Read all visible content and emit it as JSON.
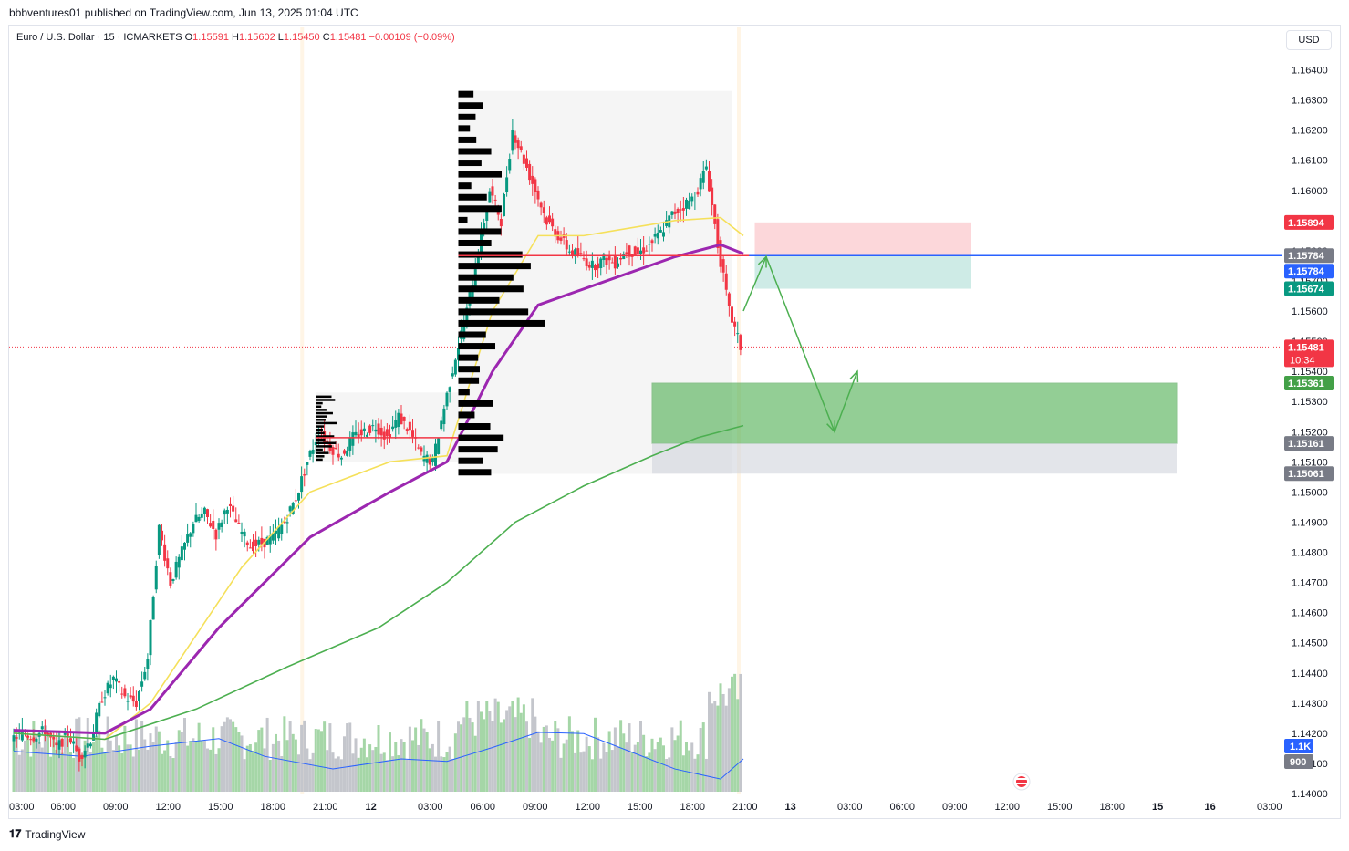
{
  "byline": "bbbventures01 published on TradingView.com, Jun 13, 2025 01:04 UTC",
  "legend": {
    "symbol": "Euro / U.S. Dollar · 15 · ICMARKETS",
    "open_label": "O",
    "open": "1.15591",
    "high_label": "H",
    "high": "1.15602",
    "low_label": "L",
    "low": "1.15450",
    "close_label": "C",
    "close": "1.15481",
    "change": "−0.00109 (−0.09%)"
  },
  "currency": "USD",
  "footer": {
    "brand": "TradingView"
  },
  "chart_data": {
    "type": "candlestick",
    "instrument": "Euro / U.S. Dollar",
    "timeframe": "15",
    "exchange": "ICMARKETS",
    "ylim": [
      1.14,
      1.1645
    ],
    "y_ticks": [
      "1.16400",
      "1.16300",
      "1.16200",
      "1.16100",
      "1.16000",
      "1.15900",
      "1.15800",
      "1.15700",
      "1.15600",
      "1.15500",
      "1.15400",
      "1.15300",
      "1.15200",
      "1.15100",
      "1.15000",
      "1.14900",
      "1.14800",
      "1.14700",
      "1.14600",
      "1.14500",
      "1.14400",
      "1.14300",
      "1.14200",
      "1.14100",
      "1.14000"
    ],
    "x_ticks": [
      "03:00",
      "06:00",
      "09:00",
      "12:00",
      "15:00",
      "18:00",
      "21:00",
      "12",
      "03:00",
      "06:00",
      "09:00",
      "12:00",
      "15:00",
      "18:00",
      "21:00",
      "13",
      "03:00",
      "06:00",
      "09:00",
      "12:00",
      "15:00",
      "18:00",
      "15",
      "16",
      "03:00"
    ],
    "price_path": [
      {
        "t": 0,
        "p": 1.1418
      },
      {
        "t": 1,
        "p": 1.142
      },
      {
        "t": 2,
        "p": 1.1419
      },
      {
        "t": 3,
        "p": 1.1421
      },
      {
        "t": 4,
        "p": 1.1415
      },
      {
        "t": 5,
        "p": 1.142
      },
      {
        "t": 6,
        "p": 1.1412
      },
      {
        "t": 7,
        "p": 1.1418
      },
      {
        "t": 8,
        "p": 1.1432
      },
      {
        "t": 9,
        "p": 1.1438
      },
      {
        "t": 10,
        "p": 1.1432
      },
      {
        "t": 11,
        "p": 1.143
      },
      {
        "t": 12,
        "p": 1.1445
      },
      {
        "t": 13,
        "p": 1.1488
      },
      {
        "t": 14,
        "p": 1.147
      },
      {
        "t": 15,
        "p": 1.148
      },
      {
        "t": 16,
        "p": 1.149
      },
      {
        "t": 17,
        "p": 1.1493
      },
      {
        "t": 18,
        "p": 1.1486
      },
      {
        "t": 19,
        "p": 1.1496
      },
      {
        "t": 20,
        "p": 1.1488
      },
      {
        "t": 21,
        "p": 1.1482
      },
      {
        "t": 22,
        "p": 1.1483
      },
      {
        "t": 23,
        "p": 1.1485
      },
      {
        "t": 24,
        "p": 1.149
      },
      {
        "t": 25,
        "p": 1.1498
      },
      {
        "t": 26,
        "p": 1.151
      },
      {
        "t": 27,
        "p": 1.152
      },
      {
        "t": 28,
        "p": 1.1515
      },
      {
        "t": 29,
        "p": 1.1512
      },
      {
        "t": 30,
        "p": 1.1518
      },
      {
        "t": 31,
        "p": 1.152
      },
      {
        "t": 32,
        "p": 1.1522
      },
      {
        "t": 33,
        "p": 1.1518
      },
      {
        "t": 34,
        "p": 1.1525
      },
      {
        "t": 35,
        "p": 1.152
      },
      {
        "t": 36,
        "p": 1.1512
      },
      {
        "t": 37,
        "p": 1.151
      },
      {
        "t": 38,
        "p": 1.1528
      },
      {
        "t": 39,
        "p": 1.1545
      },
      {
        "t": 40,
        "p": 1.156
      },
      {
        "t": 41,
        "p": 1.158
      },
      {
        "t": 42,
        "p": 1.16
      },
      {
        "t": 43,
        "p": 1.159
      },
      {
        "t": 44,
        "p": 1.162
      },
      {
        "t": 45,
        "p": 1.161
      },
      {
        "t": 46,
        "p": 1.16
      },
      {
        "t": 47,
        "p": 1.159
      },
      {
        "t": 48,
        "p": 1.1585
      },
      {
        "t": 49,
        "p": 1.158
      },
      {
        "t": 50,
        "p": 1.1578
      },
      {
        "t": 51,
        "p": 1.1575
      },
      {
        "t": 52,
        "p": 1.1577
      },
      {
        "t": 53,
        "p": 1.1576
      },
      {
        "t": 54,
        "p": 1.158
      },
      {
        "t": 55,
        "p": 1.1579
      },
      {
        "t": 56,
        "p": 1.1582
      },
      {
        "t": 57,
        "p": 1.1586
      },
      {
        "t": 58,
        "p": 1.1592
      },
      {
        "t": 59,
        "p": 1.1595
      },
      {
        "t": 60,
        "p": 1.1598
      },
      {
        "t": 61,
        "p": 1.1608
      },
      {
        "t": 62,
        "p": 1.1582
      },
      {
        "t": 63,
        "p": 1.156
      },
      {
        "t": 64,
        "p": 1.1548
      }
    ],
    "t_end": 64,
    "t_max": 110,
    "series": [
      {
        "name": "",
        "color": "#f5e05a",
        "points": [
          [
            0,
            1.142
          ],
          [
            8,
            1.1418
          ],
          [
            12,
            1.143
          ],
          [
            20,
            1.1475
          ],
          [
            26,
            1.15
          ],
          [
            33,
            1.151
          ],
          [
            38,
            1.1512
          ],
          [
            42,
            1.156
          ],
          [
            46,
            1.1585
          ],
          [
            50,
            1.1585
          ],
          [
            58,
            1.159
          ],
          [
            62,
            1.1591
          ],
          [
            64,
            1.1585
          ]
        ]
      },
      {
        "name": "",
        "color": "#9c27b0",
        "points": [
          [
            0,
            1.1421
          ],
          [
            8,
            1.142
          ],
          [
            12,
            1.1428
          ],
          [
            18,
            1.1455
          ],
          [
            26,
            1.1485
          ],
          [
            33,
            1.15
          ],
          [
            38,
            1.151
          ],
          [
            42,
            1.154
          ],
          [
            46,
            1.1562
          ],
          [
            52,
            1.157
          ],
          [
            58,
            1.1578
          ],
          [
            62,
            1.1582
          ],
          [
            64,
            1.1579
          ]
        ]
      },
      {
        "name": "",
        "color": "#4caf50",
        "points": [
          [
            0,
            1.142
          ],
          [
            8,
            1.1418
          ],
          [
            16,
            1.1428
          ],
          [
            24,
            1.1442
          ],
          [
            32,
            1.1455
          ],
          [
            38,
            1.147
          ],
          [
            44,
            1.149
          ],
          [
            50,
            1.1502
          ],
          [
            56,
            1.1512
          ],
          [
            60,
            1.1518
          ],
          [
            64,
            1.1522
          ]
        ]
      }
    ],
    "volume_series": {
      "name": "",
      "max": 1600
    },
    "levels": [
      {
        "label": "1.15894",
        "price": 1.15894,
        "color": "#f23645"
      },
      {
        "label": "1.15784",
        "price": 1.15784,
        "color": "#787b86"
      },
      {
        "label": "1.15784",
        "price": 1.15784,
        "color": "#2962ff"
      },
      {
        "label": "1.15674",
        "price": 1.15674,
        "color": "#089981"
      },
      {
        "label": "1.15481",
        "price": 1.15481,
        "color": "#f23645"
      },
      {
        "label": "1.15361",
        "price": 1.15361,
        "color": "#43a047"
      },
      {
        "label": "1.15161",
        "price": 1.15161,
        "color": "#787b86"
      },
      {
        "label": "1.15061",
        "price": 1.15061,
        "color": "#787b86"
      }
    ],
    "countdown": "10:34",
    "volume_labels": [
      "1.1K",
      "900"
    ],
    "annotations": {
      "short_position": {
        "entry": 1.15784,
        "stop": 1.15894,
        "target": 1.15674,
        "t_from": 65,
        "t_to": 84
      },
      "demand_zone": {
        "top": 1.15361,
        "mid": 1.15161,
        "bottom": 1.15061,
        "t_from": 56,
        "t_to": 102
      },
      "path_arrows": [
        [
          64,
          1.156
        ],
        [
          66,
          1.1578
        ],
        [
          72,
          1.152
        ],
        [
          74,
          1.154
        ]
      ],
      "volume_profile_poc": [
        1.15784,
        1.1518
      ]
    }
  }
}
